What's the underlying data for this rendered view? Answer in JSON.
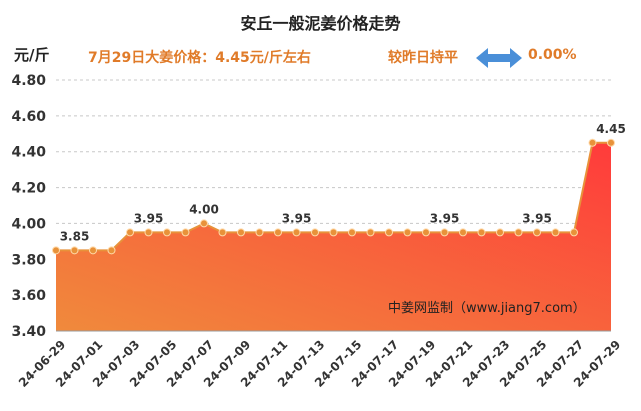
{
  "header": {
    "title": "安丘一般泥姜价格走势",
    "unit": "元/斤",
    "price_info": "7月29日大姜价格：4.45元/斤左右",
    "change_label": "较昨日持平",
    "change_value": "0.00%",
    "arrow_icon": "double-arrow-icon"
  },
  "watermark": "中姜网监制（www.jiang7.com）",
  "colors": {
    "line": "#e8923a",
    "fill_top": "#ff3b3b",
    "fill_bottom": "#f08a3c",
    "accent_text": "#e07b29",
    "arrow": "#4a8fd8"
  },
  "chart_data": {
    "type": "area",
    "ylabel": "元/斤",
    "ylim": [
      3.4,
      4.8
    ],
    "yticks": [
      "3.40",
      "3.60",
      "3.80",
      "4.00",
      "4.20",
      "4.40",
      "4.60",
      "4.80"
    ],
    "x": [
      "24-06-29",
      "24-06-30",
      "24-07-01",
      "24-07-02",
      "24-07-03",
      "24-07-04",
      "24-07-05",
      "24-07-06",
      "24-07-07",
      "24-07-08",
      "24-07-09",
      "24-07-10",
      "24-07-11",
      "24-07-12",
      "24-07-13",
      "24-07-14",
      "24-07-15",
      "24-07-16",
      "24-07-17",
      "24-07-18",
      "24-07-19",
      "24-07-20",
      "24-07-21",
      "24-07-22",
      "24-07-23",
      "24-07-24",
      "24-07-25",
      "24-07-26",
      "24-07-27",
      "24-07-28",
      "24-07-29"
    ],
    "xtick_labels": [
      "24-06-29",
      "24-07-01",
      "24-07-03",
      "24-07-05",
      "24-07-07",
      "24-07-09",
      "24-07-11",
      "24-07-13",
      "24-07-15",
      "24-07-17",
      "24-07-19",
      "24-07-21",
      "24-07-23",
      "24-07-25",
      "24-07-27",
      "24-07-29"
    ],
    "values": [
      3.85,
      3.85,
      3.85,
      3.85,
      3.95,
      3.95,
      3.95,
      3.95,
      4.0,
      3.95,
      3.95,
      3.95,
      3.95,
      3.95,
      3.95,
      3.95,
      3.95,
      3.95,
      3.95,
      3.95,
      3.95,
      3.95,
      3.95,
      3.95,
      3.95,
      3.95,
      3.95,
      3.95,
      3.95,
      4.45,
      4.45
    ],
    "data_labels": [
      {
        "index": 1,
        "text": "3.85"
      },
      {
        "index": 5,
        "text": "3.95"
      },
      {
        "index": 8,
        "text": "4.00"
      },
      {
        "index": 13,
        "text": "3.95"
      },
      {
        "index": 21,
        "text": "3.95"
      },
      {
        "index": 26,
        "text": "3.95"
      },
      {
        "index": 30,
        "text": "4.45"
      }
    ],
    "grid": true
  }
}
